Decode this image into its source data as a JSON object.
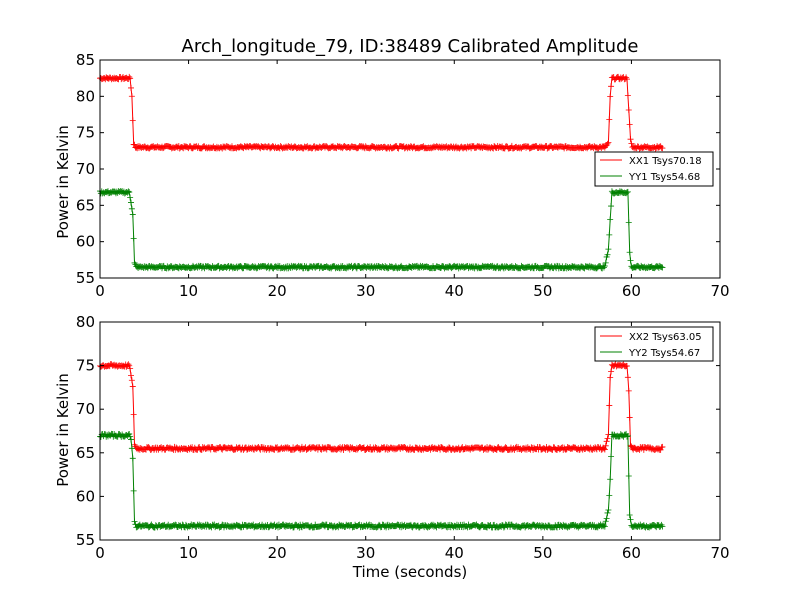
{
  "chart_data": [
    {
      "type": "line",
      "title": "Arch_longitude_79, ID:38489 Calibrated Amplitude",
      "xlabel": "",
      "ylabel": "Power in Kelvin",
      "xlim": [
        0,
        70
      ],
      "ylim": [
        55,
        85
      ],
      "xticks": [
        0,
        10,
        20,
        30,
        40,
        50,
        60,
        70
      ],
      "yticks": [
        55,
        60,
        65,
        70,
        75,
        80,
        85
      ],
      "grid": false,
      "legend_position": "center-right",
      "series": [
        {
          "name": "XX1 Tsys70.18",
          "color": "#ff0000",
          "marker": "+",
          "high": 82.5,
          "low": 73.0,
          "x": [
            0,
            3.4,
            3.6,
            3.8,
            4.0,
            10,
            20,
            30,
            40,
            50,
            57.0,
            57.4,
            57.6,
            57.8,
            58,
            59.5,
            59.7,
            59.9,
            60.1,
            63.5
          ],
          "y": [
            82.5,
            82.5,
            80.0,
            73.5,
            73.0,
            73.0,
            73.0,
            73.0,
            73.0,
            73.0,
            73.0,
            73.5,
            80.0,
            82.5,
            82.5,
            82.5,
            78.0,
            74.0,
            73.0,
            73.0
          ]
        },
        {
          "name": "YY1 Tsys54.68",
          "color": "#008000",
          "marker": "+",
          "high": 66.8,
          "low": 56.5,
          "x": [
            0,
            3.3,
            3.5,
            3.7,
            3.9,
            4.1,
            10,
            20,
            30,
            40,
            50,
            57.0,
            57.4,
            57.6,
            57.8,
            58,
            59.6,
            59.8,
            60.0,
            63.5
          ],
          "y": [
            66.8,
            66.8,
            65.5,
            63.8,
            57.0,
            56.5,
            56.5,
            56.5,
            56.5,
            56.5,
            56.5,
            56.5,
            59.0,
            63.0,
            66.8,
            66.8,
            66.8,
            58.5,
            56.5,
            56.5
          ]
        }
      ]
    },
    {
      "type": "line",
      "title": "",
      "xlabel": "Time (seconds)",
      "ylabel": "Power in Kelvin",
      "xlim": [
        0,
        70
      ],
      "ylim": [
        55,
        80
      ],
      "xticks": [
        0,
        10,
        20,
        30,
        40,
        50,
        60,
        70
      ],
      "yticks": [
        55,
        60,
        65,
        70,
        75,
        80
      ],
      "grid": false,
      "legend_position": "top-right",
      "series": [
        {
          "name": "XX2 Tsys63.05",
          "color": "#ff0000",
          "marker": "+",
          "high": 75.0,
          "low": 65.5,
          "x": [
            0,
            3.3,
            3.5,
            3.7,
            3.9,
            4.1,
            10,
            20,
            30,
            40,
            50,
            57.0,
            57.4,
            57.6,
            57.8,
            58,
            59.5,
            59.7,
            59.9,
            60.1,
            63.5
          ],
          "y": [
            75.0,
            75.0,
            74.0,
            72.5,
            66.0,
            65.5,
            65.5,
            65.5,
            65.5,
            65.5,
            65.5,
            65.5,
            67.0,
            73.5,
            75.0,
            75.0,
            75.0,
            72.0,
            66.0,
            65.5,
            65.5
          ]
        },
        {
          "name": "YY2 Tsys54.67",
          "color": "#008000",
          "marker": "+",
          "high": 67.0,
          "low": 56.6,
          "x": [
            0,
            3.3,
            3.5,
            3.7,
            3.9,
            4.1,
            10,
            20,
            30,
            40,
            50,
            57.0,
            57.4,
            57.6,
            57.8,
            58,
            59.6,
            59.8,
            60.0,
            63.5
          ],
          "y": [
            67.0,
            67.0,
            66.5,
            64.5,
            57.0,
            56.6,
            56.6,
            56.6,
            56.6,
            56.6,
            56.6,
            56.6,
            58.5,
            62.0,
            67.0,
            67.0,
            67.0,
            58.0,
            56.6,
            56.6
          ]
        }
      ]
    }
  ]
}
